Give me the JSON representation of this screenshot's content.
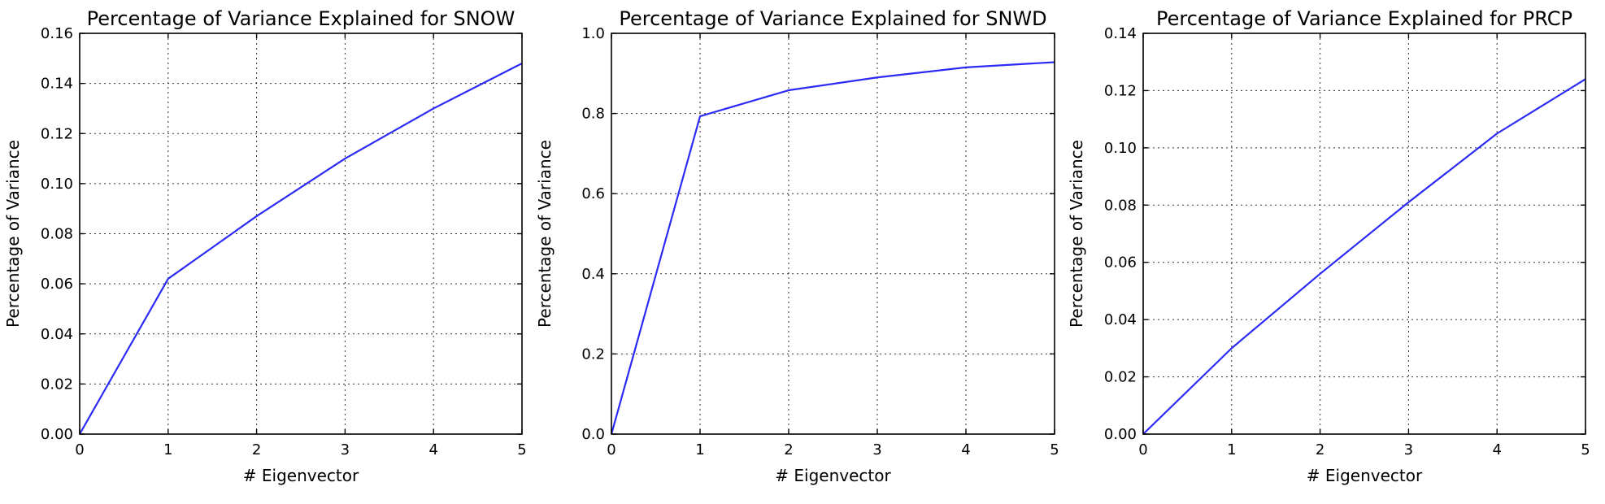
{
  "colors": {
    "series": "#2b2bf5",
    "axes": "#000000",
    "background": "#ffffff"
  },
  "chart_data": [
    {
      "type": "line",
      "title": "Percentage of Variance Explained for SNOW",
      "xlabel": "# Eigenvector",
      "ylabel": "Percentage of Variance",
      "xlim": [
        0,
        5
      ],
      "ylim": [
        0,
        0.16
      ],
      "xticks": [
        "0",
        "1",
        "2",
        "3",
        "4",
        "5"
      ],
      "yticks": [
        "0.00",
        "0.02",
        "0.04",
        "0.06",
        "0.08",
        "0.10",
        "0.12",
        "0.14",
        "0.16"
      ],
      "grid": true,
      "series": [
        {
          "x": [
            0,
            1,
            2,
            3,
            4,
            5
          ],
          "values": [
            0.0,
            0.062,
            0.087,
            0.11,
            0.13,
            0.148
          ]
        }
      ]
    },
    {
      "type": "line",
      "title": "Percentage of Variance Explained for SNWD",
      "xlabel": "# Eigenvector",
      "ylabel": "Percentage of Variance",
      "xlim": [
        0,
        5
      ],
      "ylim": [
        0,
        1.0
      ],
      "xticks": [
        "0",
        "1",
        "2",
        "3",
        "4",
        "5"
      ],
      "yticks": [
        "0.0",
        "0.2",
        "0.4",
        "0.6",
        "0.8",
        "1.0"
      ],
      "grid": true,
      "series": [
        {
          "x": [
            0,
            1,
            2,
            3,
            4,
            5
          ],
          "values": [
            0.0,
            0.793,
            0.858,
            0.89,
            0.915,
            0.928
          ]
        }
      ]
    },
    {
      "type": "line",
      "title": "Percentage of Variance Explained for PRCP",
      "xlabel": "# Eigenvector",
      "ylabel": "Percentage of Variance",
      "xlim": [
        0,
        5
      ],
      "ylim": [
        0,
        0.14
      ],
      "xticks": [
        "0",
        "1",
        "2",
        "3",
        "4",
        "5"
      ],
      "yticks": [
        "0.00",
        "0.02",
        "0.04",
        "0.06",
        "0.08",
        "0.10",
        "0.12",
        "0.14"
      ],
      "grid": true,
      "series": [
        {
          "x": [
            0,
            1,
            2,
            3,
            4,
            5
          ],
          "values": [
            0.0,
            0.03,
            0.056,
            0.081,
            0.105,
            0.124
          ]
        }
      ]
    }
  ]
}
